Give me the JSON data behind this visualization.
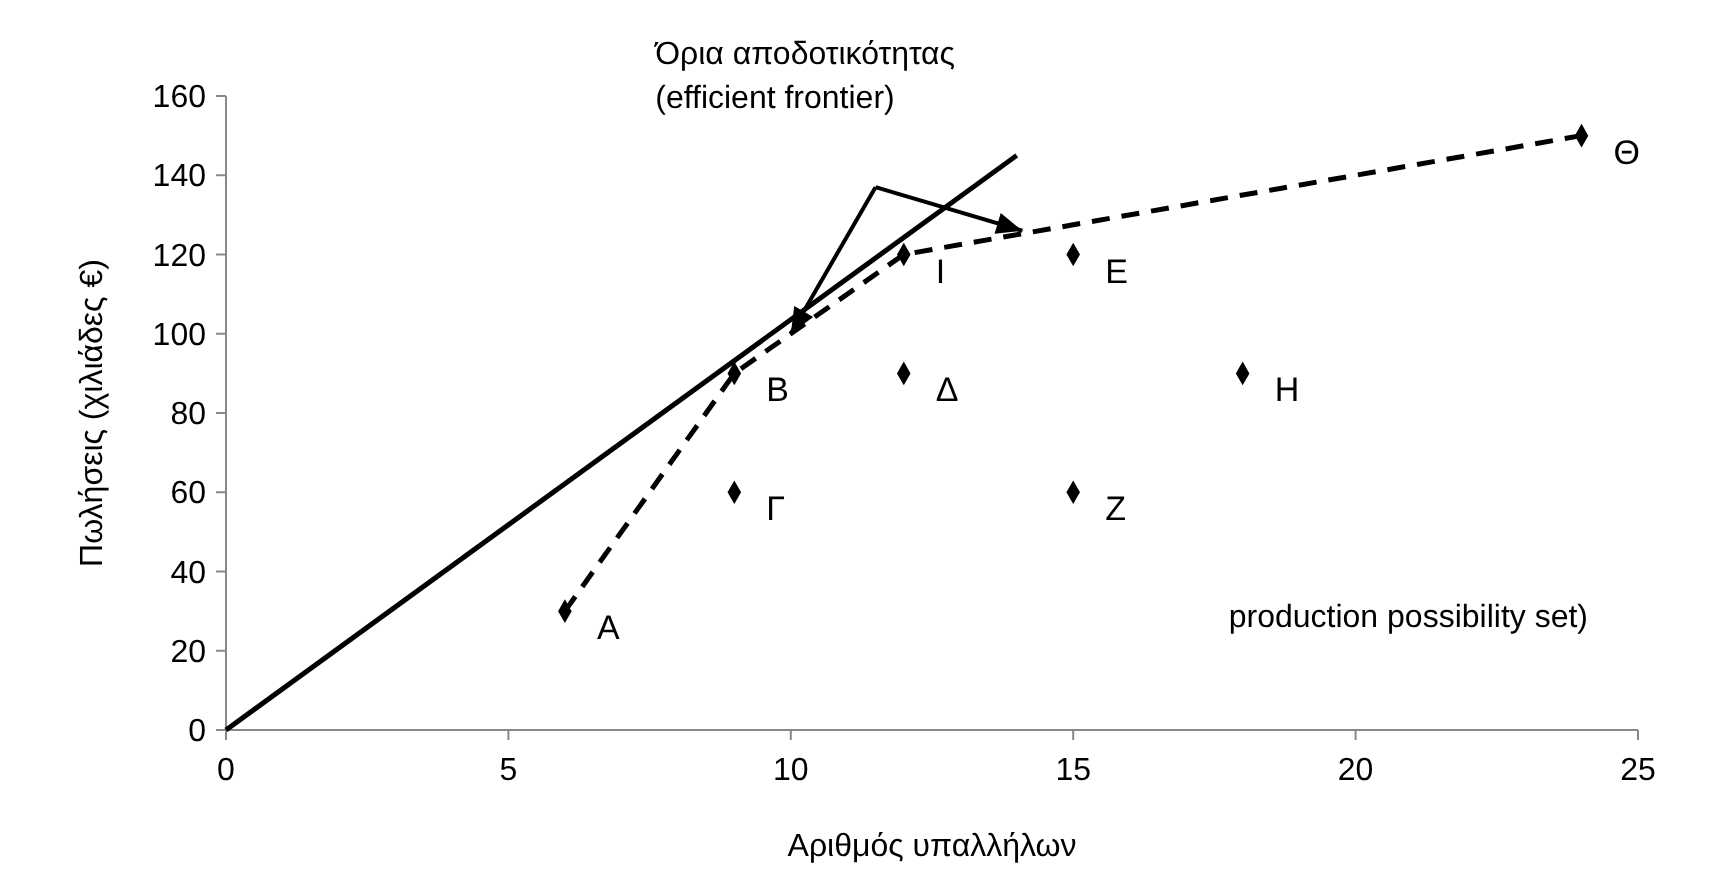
{
  "chart_data": {
    "type": "scatter",
    "xlabel": "Αριθμός υπαλλήλων",
    "ylabel": "Πωλήσεις (χιλιάδες €)",
    "xlim": [
      0,
      25
    ],
    "xticks": [
      0,
      5,
      10,
      15,
      20,
      25
    ],
    "ylim": [
      0,
      160
    ],
    "yticks": [
      0,
      20,
      40,
      60,
      80,
      100,
      120,
      140,
      160
    ],
    "grid": false,
    "series": [
      {
        "color": "#000000",
        "marker": "diamond",
        "x": [
          6,
          9,
          9,
          12,
          15,
          15,
          18,
          12,
          24
        ],
        "values": [
          30,
          90,
          60,
          90,
          120,
          60,
          90,
          120,
          150
        ]
      },
      {
        "type": "line",
        "color": "#000000",
        "line_style": "dashed",
        "marker": "none",
        "x": [
          6,
          9,
          12,
          24
        ],
        "values": [
          30,
          90,
          120,
          150
        ]
      },
      {
        "type": "line",
        "color": "#000000",
        "line_style": "solid",
        "marker": "none",
        "x": [
          0,
          14
        ],
        "values": [
          0,
          145
        ]
      }
    ],
    "annotations": [
      "Όρια αποδοτικότητας",
      "(efficient frontier)",
      "production possibility set)",
      {
        "text": "A",
        "x": 6,
        "y": 30
      },
      {
        "text": "B",
        "x": 9,
        "y": 90
      },
      {
        "text": "Γ",
        "x": 9,
        "y": 60
      },
      {
        "text": "Δ",
        "x": 12,
        "y": 90
      },
      {
        "text": "E",
        "x": 15,
        "y": 120
      },
      {
        "text": "Z",
        "x": 15,
        "y": 60
      },
      {
        "text": "H",
        "x": 18,
        "y": 90
      },
      {
        "text": "I",
        "x": 12,
        "y": 120
      },
      {
        "text": "Θ",
        "x": 24,
        "y": 150
      }
    ]
  }
}
